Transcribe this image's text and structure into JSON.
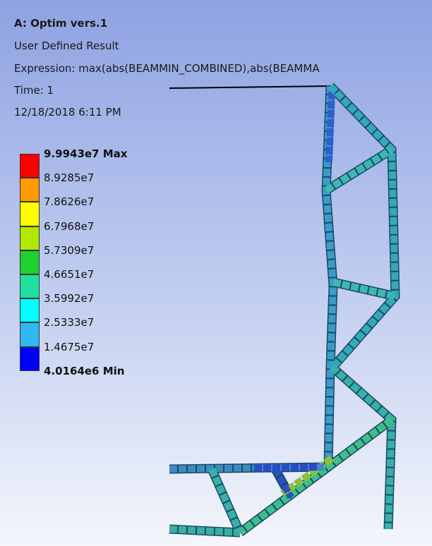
{
  "header": {
    "title": "A: Optim vers.1",
    "result": "User Defined Result",
    "expression": "Expression: max(abs(BEAMMIN_COMBINED),abs(BEAMMA",
    "time": "Time: 1",
    "date": "12/18/2018 6:11 PM"
  },
  "legend": {
    "labels": [
      "9.9943e7 Max",
      "8.9285e7",
      "7.8626e7",
      "6.7968e7",
      "5.7309e7",
      "4.6651e7",
      "3.5992e7",
      "2.5333e7",
      "1.4675e7",
      "4.0164e6 Min"
    ],
    "colors": [
      "#ff0000",
      "#ff9a00",
      "#ffff00",
      "#b0e800",
      "#20d030",
      "#20e0a0",
      "#00ffff",
      "#30b8f0",
      "#0000ff"
    ]
  }
}
